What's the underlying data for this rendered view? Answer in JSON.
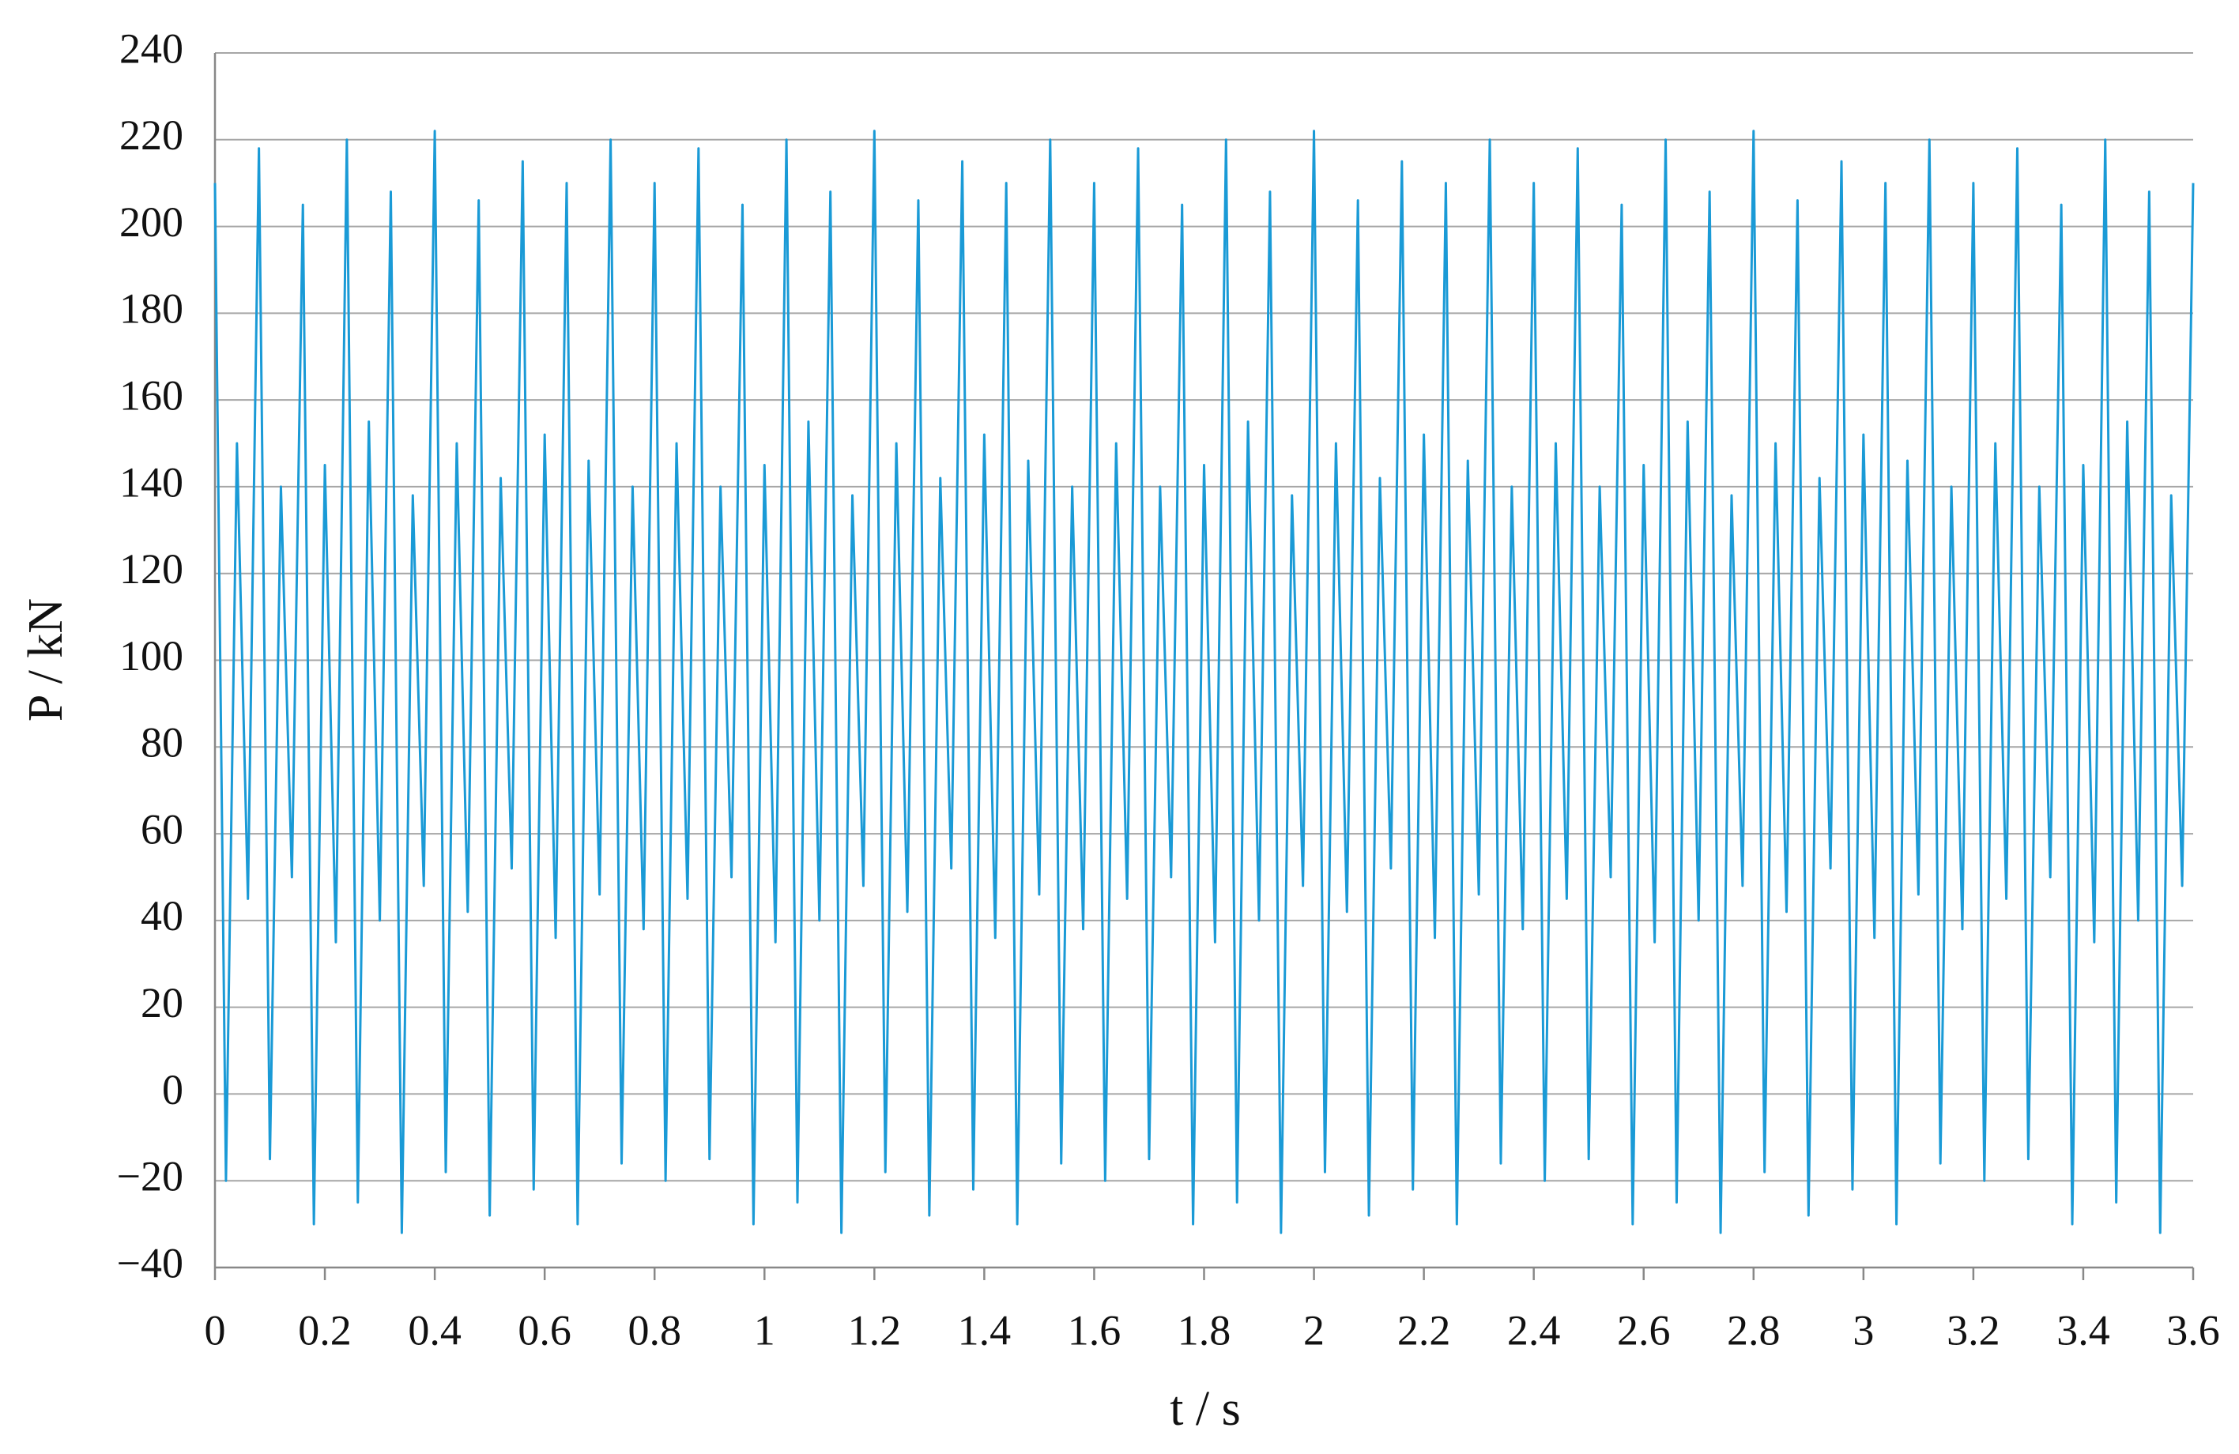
{
  "chart_data": {
    "type": "line",
    "xlabel": "t / s",
    "ylabel": "P / kN",
    "color": "#1a9ad6",
    "x": [
      0,
      0.02,
      0.04,
      0.06,
      0.08,
      0.1,
      0.12,
      0.14,
      0.16,
      0.18,
      0.2,
      0.22,
      0.24,
      0.26,
      0.28,
      0.3,
      0.32,
      0.34,
      0.36,
      0.38,
      0.4,
      0.42,
      0.44,
      0.46,
      0.48,
      0.5,
      0.52,
      0.54,
      0.56,
      0.58,
      0.6,
      0.62,
      0.64,
      0.66,
      0.68,
      0.7,
      0.72,
      0.74,
      0.76,
      0.78,
      0.8,
      0.82,
      0.84,
      0.86,
      0.88,
      0.9,
      0.92,
      0.94,
      0.96,
      0.98,
      1,
      1.02,
      1.04,
      1.06,
      1.08,
      1.1,
      1.12,
      1.14,
      1.16,
      1.18,
      1.2,
      1.22,
      1.24,
      1.26,
      1.28,
      1.3,
      1.32,
      1.34,
      1.36,
      1.38,
      1.4,
      1.42,
      1.44,
      1.46,
      1.48,
      1.5,
      1.52,
      1.54,
      1.56,
      1.58,
      1.6,
      1.62,
      1.64,
      1.66,
      1.68,
      1.7,
      1.72,
      1.74,
      1.76,
      1.78,
      1.8,
      1.82,
      1.84,
      1.86,
      1.88,
      1.9,
      1.92,
      1.94,
      1.96,
      1.98,
      2,
      2.02,
      2.04,
      2.06,
      2.08,
      2.1,
      2.12,
      2.14,
      2.16,
      2.18,
      2.2,
      2.22,
      2.24,
      2.26,
      2.28,
      2.3,
      2.32,
      2.34,
      2.36,
      2.38,
      2.4,
      2.42,
      2.44,
      2.46,
      2.48,
      2.5,
      2.52,
      2.54,
      2.56,
      2.58,
      2.6,
      2.62,
      2.64,
      2.66,
      2.68,
      2.7,
      2.72,
      2.74,
      2.76,
      2.78,
      2.8,
      2.82,
      2.84,
      2.86,
      2.88,
      2.9,
      2.92,
      2.94,
      2.96,
      2.98,
      3,
      3.02,
      3.04,
      3.06,
      3.08,
      3.1,
      3.12,
      3.14,
      3.16,
      3.18,
      3.2,
      3.22,
      3.24,
      3.26,
      3.28,
      3.3,
      3.32,
      3.34,
      3.36,
      3.38,
      3.4,
      3.42,
      3.44,
      3.46,
      3.48,
      3.5,
      3.52,
      3.54,
      3.56,
      3.58,
      3.6
    ],
    "values": [
      210,
      -20,
      150,
      45,
      218,
      -15,
      140,
      50,
      205,
      -30,
      145,
      35,
      220,
      -25,
      155,
      40,
      208,
      -32,
      138,
      48,
      222,
      -18,
      150,
      42,
      206,
      -28,
      142,
      52,
      215,
      -22,
      152,
      36,
      210,
      -30,
      146,
      46,
      220,
      -16,
      140,
      38,
      210,
      -20,
      150,
      45,
      218,
      -15,
      140,
      50,
      205,
      -30,
      145,
      35,
      220,
      -25,
      155,
      40,
      208,
      -32,
      138,
      48,
      222,
      -18,
      150,
      42,
      206,
      -28,
      142,
      52,
      215,
      -22,
      152,
      36,
      210,
      -30,
      146,
      46,
      220,
      -16,
      140,
      38,
      210,
      -20,
      150,
      45,
      218,
      -15,
      140,
      50,
      205,
      -30,
      145,
      35,
      220,
      -25,
      155,
      40,
      208,
      -32,
      138,
      48,
      222,
      -18,
      150,
      42,
      206,
      -28,
      142,
      52,
      215,
      -22,
      152,
      36,
      210,
      -30,
      146,
      46,
      220,
      -16,
      140,
      38,
      210,
      -20,
      150,
      45,
      218,
      -15,
      140,
      50,
      205,
      -30,
      145,
      35,
      220,
      -25,
      155,
      40,
      208,
      -32,
      138,
      48,
      222,
      -18,
      150,
      42,
      206,
      -28,
      142,
      52,
      215,
      -22,
      152,
      36,
      210,
      -30,
      146,
      46,
      220,
      -16,
      140,
      38,
      210,
      -20,
      150,
      45,
      218,
      -15,
      140,
      50,
      205,
      -30,
      145,
      35,
      220,
      -25,
      155,
      40,
      208,
      -32,
      138,
      48,
      210
    ],
    "xlim": [
      0,
      3.6
    ],
    "xticks": [
      0,
      0.2,
      0.4,
      0.6,
      0.8,
      1,
      1.2,
      1.4,
      1.6,
      1.8,
      2,
      2.2,
      2.4,
      2.6,
      2.8,
      3,
      3.2,
      3.4,
      3.6
    ],
    "ylim": [
      -40,
      240
    ],
    "yticks": [
      {
        "value": -40,
        "label": "−40"
      },
      {
        "value": -20,
        "label": "−20"
      },
      0,
      20,
      40,
      60,
      80,
      100,
      120,
      140,
      160,
      180,
      200,
      220,
      240
    ],
    "grid": true
  }
}
